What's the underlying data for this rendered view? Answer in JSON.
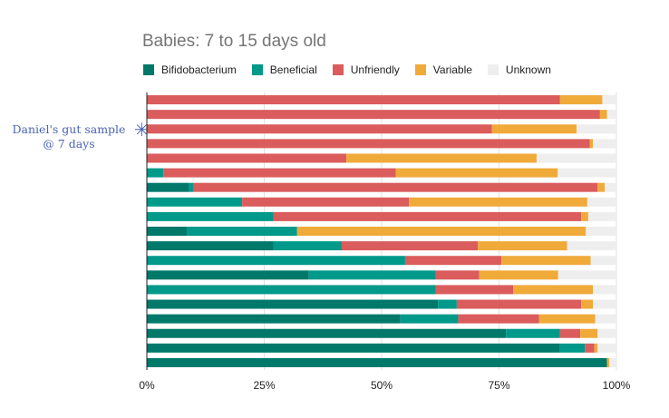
{
  "chart_data": {
    "type": "bar",
    "orientation": "horizontal",
    "stacked": true,
    "title": "Babies: 7 to 15 days old",
    "xlim": [
      0,
      100
    ],
    "x_ticks": [
      "0%",
      "25%",
      "50%",
      "75%",
      "100%"
    ],
    "grid": true,
    "legend_position": "top-left",
    "annotation": {
      "text_line1": "Daniel's gut sample",
      "text_line2": "@ 7 days",
      "marker": "✳",
      "row_index": 2
    },
    "series": [
      {
        "name": "Bifidobacterium",
        "color": "#00796b",
        "values": [
          0,
          0,
          0,
          0,
          0,
          0,
          9,
          0,
          0,
          8.5,
          27,
          0,
          34.5,
          0,
          62,
          54,
          76.5,
          88,
          98
        ]
      },
      {
        "name": "Beneficial",
        "color": "#00998a",
        "values": [
          0,
          0,
          0,
          0,
          0,
          3.5,
          1,
          20.3,
          27,
          23.5,
          14.5,
          55,
          27,
          61.5,
          4,
          12.3,
          11.5,
          5.3,
          0
        ]
      },
      {
        "name": "Unfriendly",
        "color": "#db5c5c",
        "values": [
          88,
          96.5,
          73.5,
          94.3,
          42.5,
          49.5,
          86,
          35.5,
          65.5,
          0,
          29,
          20.5,
          9.3,
          16.5,
          26.5,
          17.2,
          4.3,
          2,
          0
        ]
      },
      {
        "name": "Variable",
        "color": "#f0aa3a",
        "values": [
          9,
          1.5,
          18,
          0.7,
          40.5,
          34.5,
          1.5,
          38,
          1.5,
          61.5,
          19,
          19,
          16.8,
          17,
          2.5,
          12,
          3.7,
          0.7,
          0.5
        ]
      },
      {
        "name": "Unknown",
        "color": "#eeeeee",
        "values": [
          3,
          2,
          8.5,
          5,
          17,
          12.5,
          2.5,
          6.2,
          6,
          6.5,
          10.5,
          5.5,
          12.4,
          5,
          5,
          4.5,
          4,
          4,
          1.5
        ]
      }
    ]
  }
}
